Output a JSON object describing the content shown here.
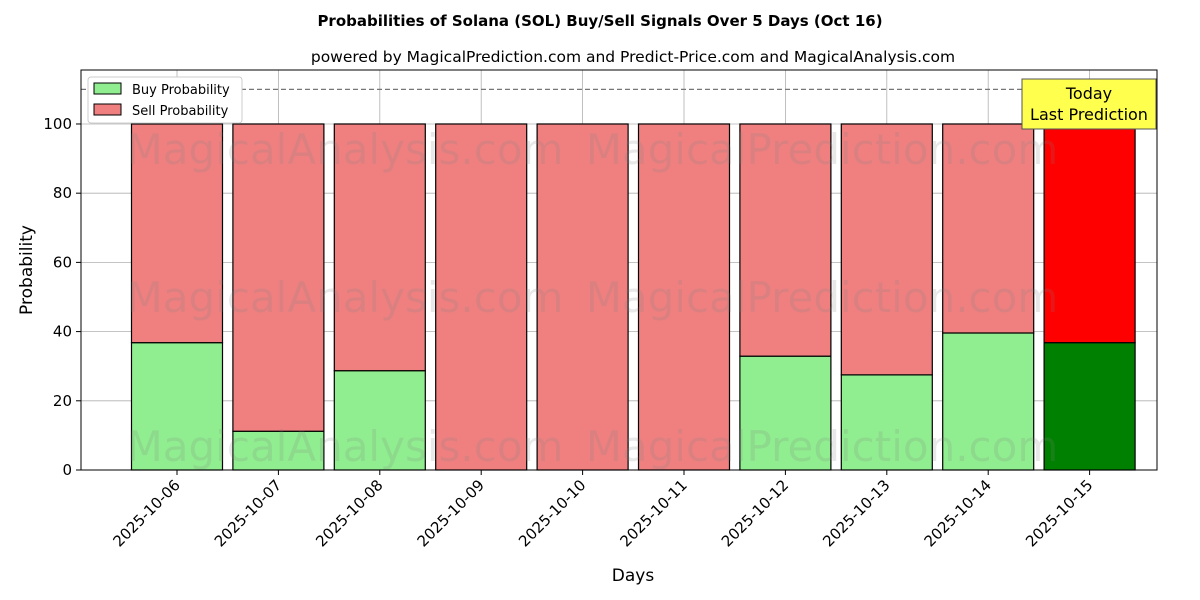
{
  "chart_data": {
    "type": "bar",
    "stacked": true,
    "title": "Probabilities of Solana (SOL) Buy/Sell Signals Over 5 Days (Oct 16)",
    "subtitle": "powered by MagicalPrediction.com and Predict-Price.com and MagicalAnalysis.com",
    "xlabel": "Days",
    "ylabel": "Probability",
    "ylim": [
      0,
      115.6
    ],
    "yticks": [
      0,
      20,
      40,
      60,
      80,
      100
    ],
    "grid": true,
    "legend_position": "top-left",
    "categories": [
      "2025-10-06",
      "2025-10-07",
      "2025-10-08",
      "2025-10-09",
      "2025-10-10",
      "2025-10-11",
      "2025-10-12",
      "2025-10-13",
      "2025-10-14",
      "2025-10-15"
    ],
    "series": [
      {
        "name": "Buy Probability",
        "color": "#90ee90",
        "highlight_color": "#008000",
        "values": [
          36.8,
          11.2,
          28.7,
          0,
          0,
          0,
          32.9,
          27.5,
          39.6,
          36.8
        ]
      },
      {
        "name": "Sell Probability",
        "color": "#f08080",
        "highlight_color": "#ff0000",
        "values": [
          63.2,
          88.8,
          71.3,
          100,
          100,
          100,
          67.1,
          72.5,
          60.4,
          63.2
        ]
      }
    ],
    "reference_line": 110,
    "annotation": {
      "line1": "Today",
      "line2": "Last Prediction",
      "color": "#ffff4d"
    },
    "watermarks": [
      "MagicalAnalysis.com",
      "MagicalPrediction.com"
    ]
  }
}
